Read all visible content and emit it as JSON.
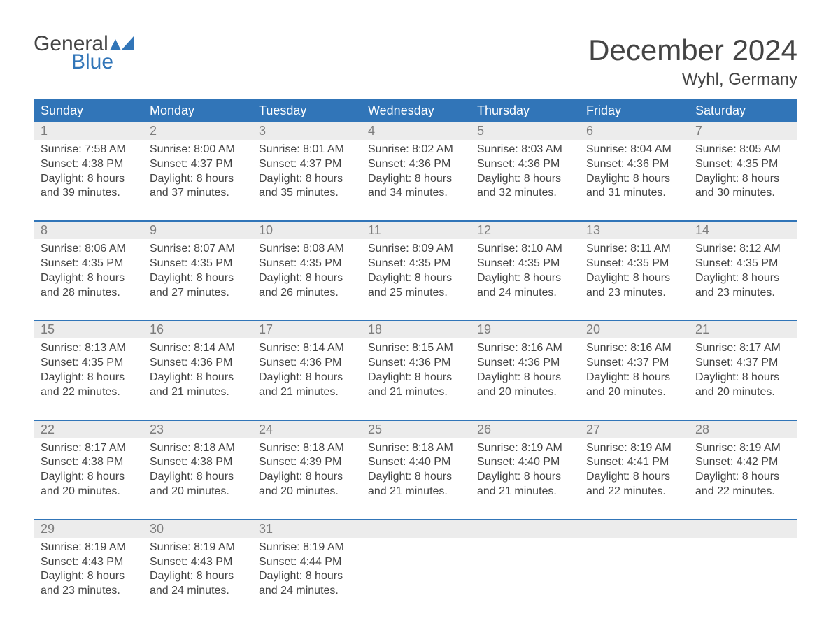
{
  "logo": {
    "line1": "General",
    "line2": "Blue",
    "shape_color": "#3175b8"
  },
  "title": "December 2024",
  "location": "Wyhl, Germany",
  "colors": {
    "header_bg": "#3175b8",
    "header_text": "#ffffff",
    "daynum_bg": "#ececec",
    "daynum_text": "#7c7c7c",
    "body_text": "#444444",
    "week_border": "#3175b8",
    "page_bg": "#ffffff"
  },
  "font": {
    "title_size": 42,
    "location_size": 24,
    "dayname_size": 18,
    "daynum_size": 18,
    "cell_size": 16
  },
  "daynames": [
    "Sunday",
    "Monday",
    "Tuesday",
    "Wednesday",
    "Thursday",
    "Friday",
    "Saturday"
  ],
  "labels": {
    "sunrise": "Sunrise:",
    "sunset": "Sunset:",
    "daylight": "Daylight:"
  },
  "weeks": [
    [
      {
        "n": 1,
        "sr": "7:58 AM",
        "ss": "4:38 PM",
        "dl": "8 hours and 39 minutes."
      },
      {
        "n": 2,
        "sr": "8:00 AM",
        "ss": "4:37 PM",
        "dl": "8 hours and 37 minutes."
      },
      {
        "n": 3,
        "sr": "8:01 AM",
        "ss": "4:37 PM",
        "dl": "8 hours and 35 minutes."
      },
      {
        "n": 4,
        "sr": "8:02 AM",
        "ss": "4:36 PM",
        "dl": "8 hours and 34 minutes."
      },
      {
        "n": 5,
        "sr": "8:03 AM",
        "ss": "4:36 PM",
        "dl": "8 hours and 32 minutes."
      },
      {
        "n": 6,
        "sr": "8:04 AM",
        "ss": "4:36 PM",
        "dl": "8 hours and 31 minutes."
      },
      {
        "n": 7,
        "sr": "8:05 AM",
        "ss": "4:35 PM",
        "dl": "8 hours and 30 minutes."
      }
    ],
    [
      {
        "n": 8,
        "sr": "8:06 AM",
        "ss": "4:35 PM",
        "dl": "8 hours and 28 minutes."
      },
      {
        "n": 9,
        "sr": "8:07 AM",
        "ss": "4:35 PM",
        "dl": "8 hours and 27 minutes."
      },
      {
        "n": 10,
        "sr": "8:08 AM",
        "ss": "4:35 PM",
        "dl": "8 hours and 26 minutes."
      },
      {
        "n": 11,
        "sr": "8:09 AM",
        "ss": "4:35 PM",
        "dl": "8 hours and 25 minutes."
      },
      {
        "n": 12,
        "sr": "8:10 AM",
        "ss": "4:35 PM",
        "dl": "8 hours and 24 minutes."
      },
      {
        "n": 13,
        "sr": "8:11 AM",
        "ss": "4:35 PM",
        "dl": "8 hours and 23 minutes."
      },
      {
        "n": 14,
        "sr": "8:12 AM",
        "ss": "4:35 PM",
        "dl": "8 hours and 23 minutes."
      }
    ],
    [
      {
        "n": 15,
        "sr": "8:13 AM",
        "ss": "4:35 PM",
        "dl": "8 hours and 22 minutes."
      },
      {
        "n": 16,
        "sr": "8:14 AM",
        "ss": "4:36 PM",
        "dl": "8 hours and 21 minutes."
      },
      {
        "n": 17,
        "sr": "8:14 AM",
        "ss": "4:36 PM",
        "dl": "8 hours and 21 minutes."
      },
      {
        "n": 18,
        "sr": "8:15 AM",
        "ss": "4:36 PM",
        "dl": "8 hours and 21 minutes."
      },
      {
        "n": 19,
        "sr": "8:16 AM",
        "ss": "4:36 PM",
        "dl": "8 hours and 20 minutes."
      },
      {
        "n": 20,
        "sr": "8:16 AM",
        "ss": "4:37 PM",
        "dl": "8 hours and 20 minutes."
      },
      {
        "n": 21,
        "sr": "8:17 AM",
        "ss": "4:37 PM",
        "dl": "8 hours and 20 minutes."
      }
    ],
    [
      {
        "n": 22,
        "sr": "8:17 AM",
        "ss": "4:38 PM",
        "dl": "8 hours and 20 minutes."
      },
      {
        "n": 23,
        "sr": "8:18 AM",
        "ss": "4:38 PM",
        "dl": "8 hours and 20 minutes."
      },
      {
        "n": 24,
        "sr": "8:18 AM",
        "ss": "4:39 PM",
        "dl": "8 hours and 20 minutes."
      },
      {
        "n": 25,
        "sr": "8:18 AM",
        "ss": "4:40 PM",
        "dl": "8 hours and 21 minutes."
      },
      {
        "n": 26,
        "sr": "8:19 AM",
        "ss": "4:40 PM",
        "dl": "8 hours and 21 minutes."
      },
      {
        "n": 27,
        "sr": "8:19 AM",
        "ss": "4:41 PM",
        "dl": "8 hours and 22 minutes."
      },
      {
        "n": 28,
        "sr": "8:19 AM",
        "ss": "4:42 PM",
        "dl": "8 hours and 22 minutes."
      }
    ],
    [
      {
        "n": 29,
        "sr": "8:19 AM",
        "ss": "4:43 PM",
        "dl": "8 hours and 23 minutes."
      },
      {
        "n": 30,
        "sr": "8:19 AM",
        "ss": "4:43 PM",
        "dl": "8 hours and 24 minutes."
      },
      {
        "n": 31,
        "sr": "8:19 AM",
        "ss": "4:44 PM",
        "dl": "8 hours and 24 minutes."
      },
      null,
      null,
      null,
      null
    ]
  ]
}
